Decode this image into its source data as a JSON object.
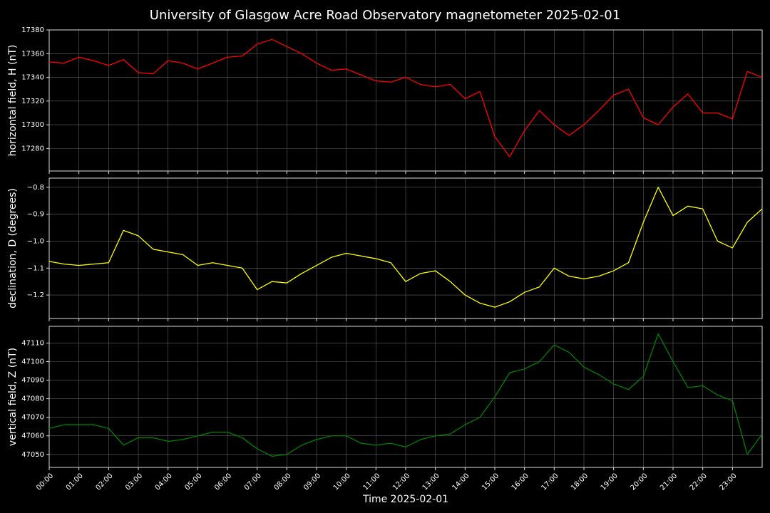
{
  "title": "University of Glasgow Acre Road Observatory magnetometer 2025-02-01",
  "chart_data": [
    {
      "type": "line",
      "ylabel": "horizontal field, H (nT)",
      "grid": true,
      "x": [
        0,
        0.5,
        1,
        1.5,
        2,
        2.5,
        3,
        3.5,
        4,
        4.5,
        5,
        5.5,
        6,
        6.5,
        7,
        7.5,
        8,
        8.5,
        9,
        9.5,
        10,
        10.5,
        11,
        11.5,
        12,
        12.5,
        13,
        13.5,
        14,
        14.5,
        15,
        15.5,
        16,
        16.5,
        17,
        17.5,
        18,
        18.5,
        19,
        19.5,
        20,
        20.5,
        21,
        21.5,
        22,
        22.5,
        23,
        23.5,
        24
      ],
      "xlim": [
        0,
        24
      ],
      "xticks": [
        0,
        1,
        2,
        3,
        4,
        5,
        6,
        7,
        8,
        9,
        10,
        11,
        12,
        13,
        14,
        15,
        16,
        17,
        18,
        19,
        20,
        21,
        22,
        23
      ],
      "ylim": [
        17261,
        17380
      ],
      "yticks": [
        17280,
        17300,
        17320,
        17340,
        17360,
        17380
      ],
      "series": [
        {
          "color": "#ff0000",
          "values": [
            17353,
            17352,
            17357,
            17354,
            17350,
            17355,
            17344,
            17343,
            17354,
            17352,
            17347,
            17352,
            17357,
            17358,
            17368,
            17372,
            17366,
            17360,
            17352,
            17346,
            17347,
            17342,
            17337,
            17336,
            17340,
            17334,
            17332,
            17334,
            17322,
            17328,
            17290,
            17273,
            17295,
            17312,
            17300,
            17291,
            17300,
            17312,
            17325,
            17330,
            17306,
            17300,
            17315,
            17326,
            17310,
            17310,
            17305,
            17345,
            17340
          ]
        }
      ]
    },
    {
      "type": "line",
      "ylabel": "declination, D (degrees)",
      "grid": true,
      "x": [
        0,
        0.5,
        1,
        1.5,
        2,
        2.5,
        3,
        3.5,
        4,
        4.5,
        5,
        5.5,
        6,
        6.5,
        7,
        7.5,
        8,
        8.5,
        9,
        9.5,
        10,
        10.5,
        11,
        11.5,
        12,
        12.5,
        13,
        13.5,
        14,
        14.5,
        15,
        15.5,
        16,
        16.5,
        17,
        17.5,
        18,
        18.5,
        19,
        19.5,
        20,
        20.5,
        21,
        21.5,
        22,
        22.5,
        23,
        23.5,
        24
      ],
      "xlim": [
        0,
        24
      ],
      "xticks": [
        0,
        1,
        2,
        3,
        4,
        5,
        6,
        7,
        8,
        9,
        10,
        11,
        12,
        13,
        14,
        15,
        16,
        17,
        18,
        19,
        20,
        21,
        22,
        23
      ],
      "ylim": [
        -1.287,
        -0.766
      ],
      "yticks": [
        {
          "value": -1.2,
          "label": "−1.2"
        },
        {
          "value": -1.1,
          "label": "−1.1"
        },
        {
          "value": -1.0,
          "label": "−1.0"
        },
        {
          "value": -0.9,
          "label": "−0.9"
        },
        {
          "value": -0.8,
          "label": "−0.8"
        }
      ],
      "series": [
        {
          "color": "#ffff00",
          "values": [
            -1.075,
            -1.085,
            -1.09,
            -1.085,
            -1.08,
            -0.96,
            -0.98,
            -1.03,
            -1.04,
            -1.05,
            -1.09,
            -1.08,
            -1.09,
            -1.1,
            -1.18,
            -1.15,
            -1.155,
            -1.12,
            -1.09,
            -1.06,
            -1.045,
            -1.055,
            -1.065,
            -1.08,
            -1.15,
            -1.12,
            -1.11,
            -1.15,
            -1.2,
            -1.23,
            -1.245,
            -1.225,
            -1.19,
            -1.17,
            -1.1,
            -1.13,
            -1.14,
            -1.13,
            -1.11,
            -1.08,
            -0.93,
            -0.8,
            -0.905,
            -0.87,
            -0.88,
            -1.0,
            -1.025,
            -0.93,
            -0.88
          ]
        }
      ]
    },
    {
      "type": "line",
      "ylabel": "vertical field, Z (nT)",
      "xlabel": "Time 2025-02-01",
      "grid": true,
      "x": [
        0,
        0.5,
        1,
        1.5,
        2,
        2.5,
        3,
        3.5,
        4,
        4.5,
        5,
        5.5,
        6,
        6.5,
        7,
        7.5,
        8,
        8.5,
        9,
        9.5,
        10,
        10.5,
        11,
        11.5,
        12,
        12.5,
        13,
        13.5,
        14,
        14.5,
        15,
        15.5,
        16,
        16.5,
        17,
        17.5,
        18,
        18.5,
        19,
        19.5,
        20,
        20.5,
        21,
        21.5,
        22,
        22.5,
        23,
        23.5,
        24
      ],
      "xlim": [
        0,
        24
      ],
      "xticks": [
        {
          "value": 0,
          "label": "00:00"
        },
        {
          "value": 1,
          "label": "01:00"
        },
        {
          "value": 2,
          "label": "02:00"
        },
        {
          "value": 3,
          "label": "03:00"
        },
        {
          "value": 4,
          "label": "04:00"
        },
        {
          "value": 5,
          "label": "05:00"
        },
        {
          "value": 6,
          "label": "06:00"
        },
        {
          "value": 7,
          "label": "07:00"
        },
        {
          "value": 8,
          "label": "08:00"
        },
        {
          "value": 9,
          "label": "09:00"
        },
        {
          "value": 10,
          "label": "10:00"
        },
        {
          "value": 11,
          "label": "11:00"
        },
        {
          "value": 12,
          "label": "12:00"
        },
        {
          "value": 13,
          "label": "13:00"
        },
        {
          "value": 14,
          "label": "14:00"
        },
        {
          "value": 15,
          "label": "15:00"
        },
        {
          "value": 16,
          "label": "16:00"
        },
        {
          "value": 17,
          "label": "17:00"
        },
        {
          "value": 18,
          "label": "18:00"
        },
        {
          "value": 19,
          "label": "19:00"
        },
        {
          "value": 20,
          "label": "20:00"
        },
        {
          "value": 21,
          "label": "21:00"
        },
        {
          "value": 22,
          "label": "22:00"
        },
        {
          "value": 23,
          "label": "23:00"
        }
      ],
      "ylim": [
        47043,
        47119
      ],
      "yticks": [
        47050,
        47060,
        47070,
        47080,
        47090,
        47100,
        47110
      ],
      "series": [
        {
          "color": "#008000",
          "values": [
            47064,
            47066,
            47066,
            47066,
            47064,
            47055,
            47059,
            47059,
            47057,
            47058,
            47060,
            47062,
            47062,
            47059,
            47053,
            47049,
            47050,
            47055,
            47058,
            47060,
            47060,
            47056,
            47055,
            47056,
            47054,
            47058,
            47060,
            47061,
            47066,
            47070,
            47081,
            47094,
            47096,
            47100,
            47109,
            47105,
            47097,
            47093,
            47088,
            47085,
            47092,
            47115,
            47100,
            47086,
            47087,
            47082,
            47079,
            47050,
            47061
          ]
        }
      ]
    }
  ]
}
